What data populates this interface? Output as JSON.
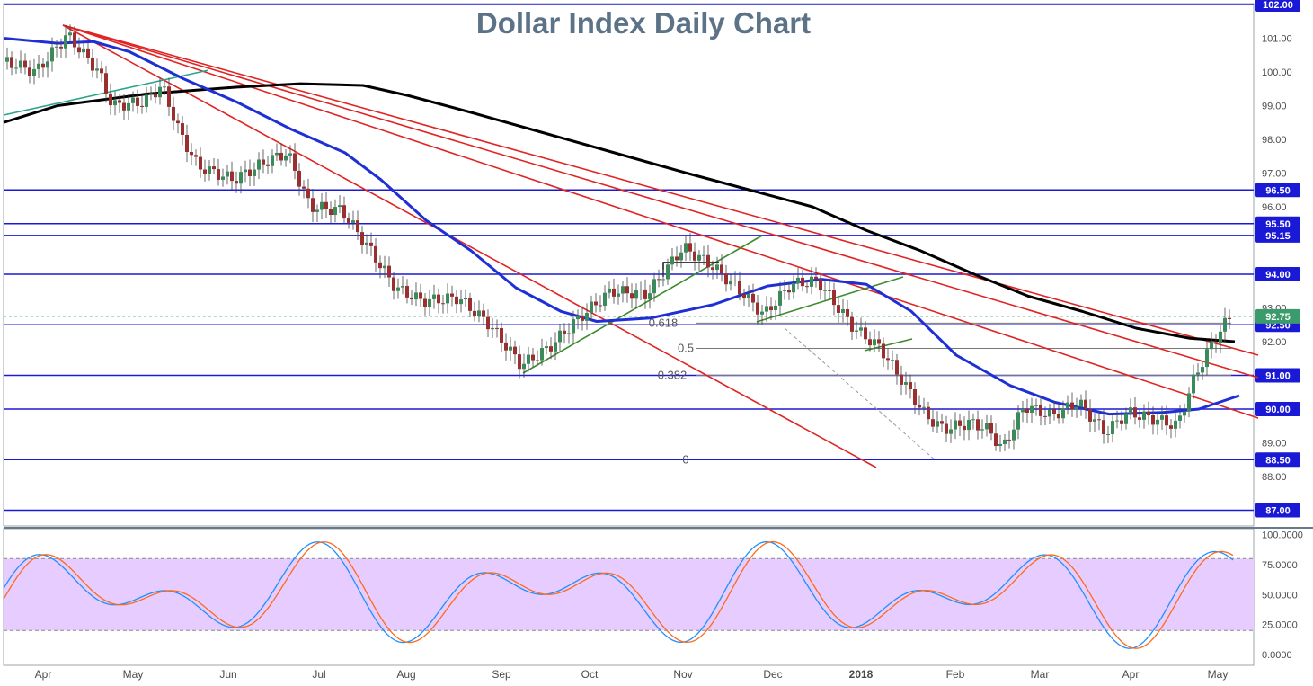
{
  "chart_data": {
    "type": "candlestick",
    "title": "Dollar Index Daily Chart",
    "x_labels": [
      "Apr",
      "May",
      "Jun",
      "Jul",
      "Aug",
      "Sep",
      "Oct",
      "Nov",
      "Dec",
      "2018",
      "Feb",
      "Mar",
      "Apr",
      "May"
    ],
    "price_axis": {
      "range": [
        86.5,
        102.2
      ],
      "ticks": [
        "101.00",
        "100.00",
        "99.00",
        "98.00",
        "97.00",
        "96.00",
        "93.00",
        "92.00",
        "89.00",
        "88.00"
      ]
    },
    "horizontal_levels": [
      {
        "value": 102.0,
        "label": "102.00",
        "color": "#1a1ad6"
      },
      {
        "value": 96.5,
        "label": "96.50",
        "color": "#1a1ad6"
      },
      {
        "value": 95.5,
        "label": "95.50",
        "color": "#1a1ad6"
      },
      {
        "value": 95.15,
        "label": "95.15",
        "color": "#1a1ad6"
      },
      {
        "value": 94.0,
        "label": "94.00",
        "color": "#1a1ad6"
      },
      {
        "value": 92.5,
        "label": "92.50",
        "color": "#1a1ad6"
      },
      {
        "value": 91.0,
        "label": "91.00",
        "color": "#1a1ad6"
      },
      {
        "value": 90.0,
        "label": "90.00",
        "color": "#1a1ad6"
      },
      {
        "value": 88.5,
        "label": "88.50",
        "color": "#1a1ad6"
      },
      {
        "value": 87.0,
        "label": "87.00",
        "color": "#1a1ad6"
      }
    ],
    "last_price": {
      "value": 92.75,
      "label": "92.75",
      "color": "#3c9b6c"
    },
    "fibonacci": [
      {
        "label": "0.618",
        "value": 92.55
      },
      {
        "label": "0.5",
        "value": 91.8
      },
      {
        "label": "0.382",
        "value": 91.0
      },
      {
        "label": "0",
        "value": 88.5
      }
    ],
    "moving_averages": [
      {
        "color": "#000000",
        "points": [
          [
            0,
            98.5
          ],
          [
            60,
            99.0
          ],
          [
            160,
            99.35
          ],
          [
            260,
            99.55
          ],
          [
            330,
            99.65
          ],
          [
            400,
            99.6
          ],
          [
            450,
            99.3
          ],
          [
            520,
            98.8
          ],
          [
            600,
            98.2
          ],
          [
            680,
            97.6
          ],
          [
            760,
            97.0
          ],
          [
            830,
            96.5
          ],
          [
            900,
            96.0
          ],
          [
            960,
            95.3
          ],
          [
            1020,
            94.7
          ],
          [
            1080,
            94.0
          ],
          [
            1140,
            93.35
          ],
          [
            1200,
            92.9
          ],
          [
            1260,
            92.4
          ],
          [
            1320,
            92.1
          ],
          [
            1370,
            92.0
          ]
        ]
      },
      {
        "color": "#1f2fd6",
        "points": [
          [
            0,
            101.0
          ],
          [
            60,
            100.85
          ],
          [
            100,
            100.9
          ],
          [
            140,
            100.6
          ],
          [
            200,
            99.8
          ],
          [
            260,
            99.1
          ],
          [
            320,
            98.3
          ],
          [
            380,
            97.6
          ],
          [
            420,
            96.8
          ],
          [
            470,
            95.6
          ],
          [
            520,
            94.7
          ],
          [
            570,
            93.6
          ],
          [
            620,
            92.9
          ],
          [
            660,
            92.6
          ],
          [
            720,
            92.7
          ],
          [
            790,
            93.1
          ],
          [
            850,
            93.65
          ],
          [
            910,
            93.85
          ],
          [
            960,
            93.7
          ],
          [
            1010,
            92.9
          ],
          [
            1060,
            91.6
          ],
          [
            1120,
            90.7
          ],
          [
            1170,
            90.2
          ],
          [
            1230,
            89.85
          ],
          [
            1290,
            89.9
          ],
          [
            1330,
            90.0
          ],
          [
            1375,
            90.4
          ]
        ]
      }
    ],
    "stochastic": {
      "ticks": [
        "100.0000",
        "75.0000",
        "50.0000",
        "25.0000",
        "0.0000"
      ],
      "overbought": 80,
      "oversold": 20
    }
  }
}
